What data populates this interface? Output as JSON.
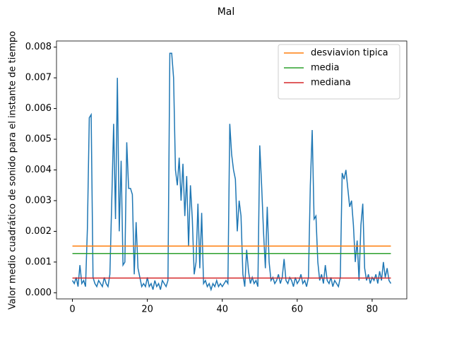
{
  "chart_data": {
    "type": "line",
    "title": "Mal",
    "ylabel": "Valor medio cuadrático de sonido para el instante de tiempo",
    "xlim": [
      -4.25,
      89.25
    ],
    "ylim": [
      -0.0002,
      0.0082
    ],
    "xticks": [
      0,
      20,
      40,
      60,
      80
    ],
    "yticks": [
      {
        "value": 0,
        "label": "0.000"
      },
      {
        "value": 0.001,
        "label": "0.001"
      },
      {
        "value": 0.002,
        "label": "0.002"
      },
      {
        "value": 0.003,
        "label": "0.003"
      },
      {
        "value": 0.004,
        "label": "0.004"
      },
      {
        "value": 0.005,
        "label": "0.005"
      },
      {
        "value": 0.006,
        "label": "0.006"
      },
      {
        "value": 0.007,
        "label": "0.007"
      },
      {
        "value": 0.008,
        "label": "0.008"
      }
    ],
    "grid": false,
    "legend": "upper right",
    "series": [
      {
        "color": "#1f77b4",
        "x": [
          0,
          0.5,
          1,
          1.5,
          2,
          2.5,
          3,
          3.5,
          4,
          4.5,
          5,
          5.5,
          6,
          6.5,
          7,
          7.5,
          8,
          8.5,
          9,
          9.5,
          10,
          10.5,
          11,
          11.5,
          12,
          12.5,
          13,
          13.5,
          14,
          14.5,
          15,
          15.5,
          16,
          16.5,
          17,
          17.5,
          18,
          18.5,
          19,
          19.5,
          20,
          20.5,
          21,
          21.5,
          22,
          22.5,
          23,
          23.5,
          24,
          24.5,
          25,
          25.5,
          26,
          26.5,
          27,
          27.5,
          28,
          28.5,
          29,
          29.5,
          30,
          30.5,
          31,
          31.5,
          32,
          32.5,
          33,
          33.5,
          34,
          34.5,
          35,
          35.5,
          36,
          36.5,
          37,
          37.5,
          38,
          38.5,
          39,
          39.5,
          40,
          40.5,
          41,
          41.5,
          42,
          42.5,
          43,
          43.5,
          44,
          44.5,
          45,
          45.5,
          46,
          46.5,
          47,
          47.5,
          48,
          48.5,
          49,
          49.5,
          50,
          50.5,
          51,
          51.5,
          52,
          52.5,
          53,
          53.5,
          54,
          54.5,
          55,
          55.5,
          56,
          56.5,
          57,
          57.5,
          58,
          58.5,
          59,
          59.5,
          60,
          60.5,
          61,
          61.5,
          62,
          62.5,
          63,
          63.5,
          64,
          64.5,
          65,
          65.5,
          66,
          66.5,
          67,
          67.5,
          68,
          68.5,
          69,
          69.5,
          70,
          70.5,
          71,
          71.5,
          72,
          72.5,
          73,
          73.5,
          74,
          74.5,
          75,
          75.5,
          76,
          76.5,
          77,
          77.5,
          78,
          78.5,
          79,
          79.5,
          80,
          80.5,
          81,
          81.5,
          82,
          82.5,
          83,
          83.5,
          84,
          84.5,
          85
        ],
        "values": [
          0.0004,
          0.0003,
          0.0005,
          0.0002,
          0.0009,
          0.0003,
          0.0004,
          0.0002,
          0.0021,
          0.0057,
          0.0058,
          0.0005,
          0.0003,
          0.0002,
          0.0004,
          0.0003,
          0.0002,
          0.0005,
          0.0003,
          0.0002,
          0.0006,
          0.003,
          0.0055,
          0.0024,
          0.007,
          0.002,
          0.0043,
          0.0009,
          0.001,
          0.0049,
          0.0034,
          0.0034,
          0.0032,
          0.0006,
          0.0023,
          0.0008,
          0.0005,
          0.0002,
          0.0003,
          0.0002,
          0.0005,
          0.0002,
          0.0003,
          0.0001,
          0.0004,
          0.0002,
          0.0003,
          0.0001,
          0.0004,
          0.0003,
          0.0002,
          0.0004,
          0.0078,
          0.0078,
          0.007,
          0.004,
          0.0035,
          0.0044,
          0.003,
          0.0042,
          0.0025,
          0.0038,
          0.0015,
          0.0035,
          0.0024,
          0.0006,
          0.001,
          0.0029,
          0.0008,
          0.0026,
          0.0003,
          0.0004,
          0.0002,
          0.0003,
          0.0001,
          0.0003,
          0.0002,
          0.0004,
          0.0002,
          0.0003,
          0.0002,
          0.0003,
          0.0004,
          0.0003,
          0.0055,
          0.0045,
          0.004,
          0.0037,
          0.002,
          0.003,
          0.0025,
          0.0006,
          0.0002,
          0.0014,
          0.0007,
          0.0003,
          0.0005,
          0.0003,
          0.0004,
          0.0002,
          0.0048,
          0.0035,
          0.002,
          0.0008,
          0.0028,
          0.001,
          0.0004,
          0.0005,
          0.0003,
          0.0004,
          0.0006,
          0.0003,
          0.0005,
          0.0011,
          0.0004,
          0.0003,
          0.0005,
          0.0004,
          0.0002,
          0.0005,
          0.0003,
          0.0004,
          0.0006,
          0.0003,
          0.0004,
          0.0002,
          0.0005,
          0.0035,
          0.0053,
          0.0024,
          0.0025,
          0.001,
          0.0004,
          0.0006,
          0.0003,
          0.0009,
          0.0004,
          0.0003,
          0.0005,
          0.0002,
          0.0004,
          0.0003,
          0.0002,
          0.0005,
          0.0039,
          0.0037,
          0.004,
          0.0034,
          0.0028,
          0.003,
          0.0022,
          0.001,
          0.0017,
          0.0004,
          0.0022,
          0.0029,
          0.0008,
          0.0004,
          0.0006,
          0.0003,
          0.0005,
          0.0004,
          0.0006,
          0.0003,
          0.0007,
          0.0004,
          0.001,
          0.0005,
          0.0008,
          0.0004,
          0.0003
        ]
      },
      {
        "name": "desviavion tipica",
        "color": "#ff7f0e",
        "x": [
          0,
          85
        ],
        "values": [
          0.00152,
          0.00152
        ]
      },
      {
        "name": "media",
        "color": "#2ca02c",
        "x": [
          0,
          85
        ],
        "values": [
          0.00128,
          0.00128
        ]
      },
      {
        "name": "mediana",
        "color": "#d62728",
        "x": [
          0,
          85
        ],
        "values": [
          0.00048,
          0.00048
        ]
      }
    ]
  }
}
